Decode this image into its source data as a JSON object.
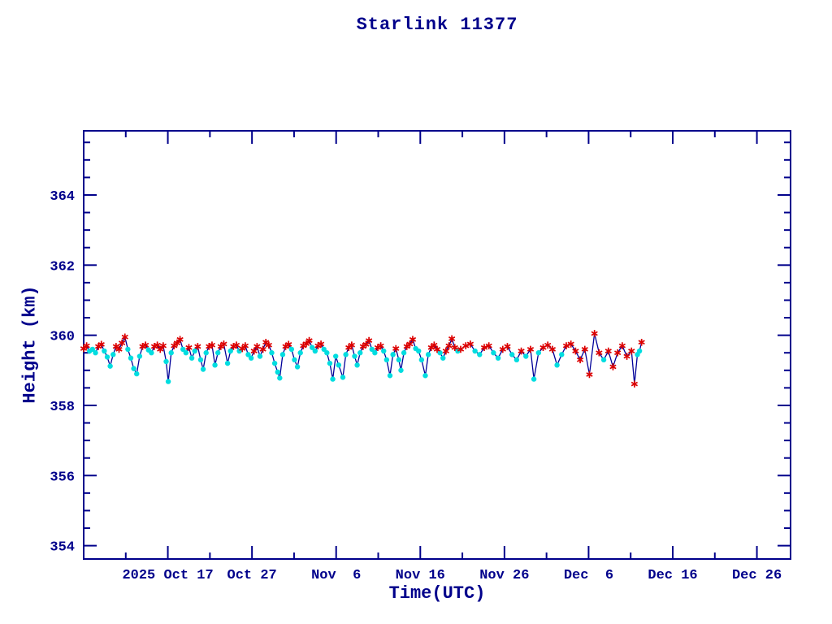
{
  "window": {
    "title": "Starlink 11377"
  },
  "colors": {
    "axis": "#00008B",
    "text": "#00008B",
    "line": "#000099",
    "red_marker": "#DC0000",
    "cyan_marker": "#00DDE0",
    "background": "#FFFFFF"
  },
  "chart_data": {
    "type": "line",
    "title": "Starlink 11377",
    "xlabel": "Time(UTC)",
    "ylabel": "Height (km)",
    "legend": "none",
    "grid": false,
    "x_axis": {
      "unit": "days since 2025 Oct 7 (UTC)",
      "range_days": [
        0,
        84
      ],
      "major_ticks": [
        {
          "day": 10,
          "label": "2025 Oct 17"
        },
        {
          "day": 20,
          "label": "Oct 27"
        },
        {
          "day": 30,
          "label": "Nov  6"
        },
        {
          "day": 40,
          "label": "Nov 16"
        },
        {
          "day": 50,
          "label": "Nov 26"
        },
        {
          "day": 60,
          "label": "Dec  6"
        },
        {
          "day": 70,
          "label": "Dec 16"
        },
        {
          "day": 80,
          "label": "Dec 26"
        }
      ],
      "minor_tick_days": [
        5,
        15,
        25,
        35,
        45,
        55,
        65,
        75
      ]
    },
    "y_axis": {
      "unit": "km",
      "range": [
        353.62,
        365.83
      ],
      "major_ticks": [
        354,
        356,
        358,
        360,
        362,
        364
      ],
      "minor_step": 0.5
    },
    "markers": {
      "r": {
        "shape": "asterisk",
        "meaning": "red asterisk point"
      },
      "c": {
        "shape": "filled-circle",
        "meaning": "cyan dot point"
      }
    },
    "series": [
      {
        "name": "height",
        "points": [
          [
            0,
            359.62,
            "r"
          ],
          [
            0.35,
            359.7,
            "r"
          ],
          [
            0.7,
            359.55,
            "c"
          ],
          [
            1.05,
            359.6,
            "c"
          ],
          [
            1.4,
            359.5,
            "c"
          ],
          [
            1.75,
            359.68,
            "r"
          ],
          [
            2.1,
            359.74,
            "r"
          ],
          [
            2.45,
            359.55,
            "c"
          ],
          [
            2.8,
            359.38,
            "c"
          ],
          [
            3.15,
            359.12,
            "c"
          ],
          [
            3.5,
            359.45,
            "c"
          ],
          [
            3.85,
            359.68,
            "r"
          ],
          [
            4.2,
            359.6,
            "r"
          ],
          [
            4.55,
            359.78,
            "r"
          ],
          [
            4.9,
            359.95,
            "r"
          ],
          [
            5.25,
            359.6,
            "c"
          ],
          [
            5.6,
            359.35,
            "c"
          ],
          [
            5.95,
            359.05,
            "c"
          ],
          [
            6.3,
            358.9,
            "c"
          ],
          [
            6.65,
            359.4,
            "c"
          ],
          [
            7,
            359.68,
            "r"
          ],
          [
            7.35,
            359.72,
            "r"
          ],
          [
            7.7,
            359.58,
            "c"
          ],
          [
            8.05,
            359.5,
            "c"
          ],
          [
            8.4,
            359.68,
            "r"
          ],
          [
            8.75,
            359.72,
            "r"
          ],
          [
            9.1,
            359.6,
            "r"
          ],
          [
            9.45,
            359.7,
            "r"
          ],
          [
            9.8,
            359.25,
            "c"
          ],
          [
            10.05,
            358.68,
            "c"
          ],
          [
            10.4,
            359.5,
            "c"
          ],
          [
            10.75,
            359.7,
            "r"
          ],
          [
            11.1,
            359.78,
            "r"
          ],
          [
            11.45,
            359.88,
            "r"
          ],
          [
            11.8,
            359.6,
            "c"
          ],
          [
            12.15,
            359.5,
            "c"
          ],
          [
            12.5,
            359.65,
            "r"
          ],
          [
            12.85,
            359.35,
            "c"
          ],
          [
            13.2,
            359.55,
            "c"
          ],
          [
            13.55,
            359.68,
            "r"
          ],
          [
            13.9,
            359.3,
            "c"
          ],
          [
            14.2,
            359.03,
            "c"
          ],
          [
            14.55,
            359.5,
            "c"
          ],
          [
            14.9,
            359.68,
            "r"
          ],
          [
            15.25,
            359.72,
            "r"
          ],
          [
            15.6,
            359.15,
            "c"
          ],
          [
            15.95,
            359.5,
            "c"
          ],
          [
            16.3,
            359.68,
            "r"
          ],
          [
            16.65,
            359.75,
            "r"
          ],
          [
            17.1,
            359.2,
            "c"
          ],
          [
            17.45,
            359.55,
            "c"
          ],
          [
            17.8,
            359.68,
            "r"
          ],
          [
            18.15,
            359.72,
            "r"
          ],
          [
            18.5,
            359.55,
            "c"
          ],
          [
            18.85,
            359.62,
            "r"
          ],
          [
            19.2,
            359.7,
            "r"
          ],
          [
            19.55,
            359.45,
            "c"
          ],
          [
            19.9,
            359.35,
            "c"
          ],
          [
            20.25,
            359.55,
            "r"
          ],
          [
            20.6,
            359.68,
            "r"
          ],
          [
            20.95,
            359.4,
            "c"
          ],
          [
            21.3,
            359.6,
            "r"
          ],
          [
            21.65,
            359.8,
            "r"
          ],
          [
            22,
            359.72,
            "r"
          ],
          [
            22.35,
            359.5,
            "c"
          ],
          [
            22.7,
            359.2,
            "c"
          ],
          [
            23.05,
            358.95,
            "c"
          ],
          [
            23.3,
            358.78,
            "c"
          ],
          [
            23.65,
            359.45,
            "c"
          ],
          [
            24,
            359.68,
            "r"
          ],
          [
            24.35,
            359.74,
            "r"
          ],
          [
            24.7,
            359.6,
            "c"
          ],
          [
            25.05,
            359.3,
            "c"
          ],
          [
            25.4,
            359.1,
            "c"
          ],
          [
            25.75,
            359.5,
            "c"
          ],
          [
            26.1,
            359.7,
            "r"
          ],
          [
            26.45,
            359.76,
            "r"
          ],
          [
            26.8,
            359.85,
            "r"
          ],
          [
            27.15,
            359.65,
            "c"
          ],
          [
            27.5,
            359.55,
            "c"
          ],
          [
            27.85,
            359.7,
            "r"
          ],
          [
            28.2,
            359.75,
            "r"
          ],
          [
            28.55,
            359.6,
            "c"
          ],
          [
            28.9,
            359.5,
            "c"
          ],
          [
            29.25,
            359.2,
            "c"
          ],
          [
            29.6,
            358.75,
            "c"
          ],
          [
            29.95,
            359.4,
            "c"
          ],
          [
            30.3,
            359.15,
            "c"
          ],
          [
            30.8,
            358.8,
            "c"
          ],
          [
            31.15,
            359.45,
            "c"
          ],
          [
            31.5,
            359.65,
            "r"
          ],
          [
            31.85,
            359.72,
            "r"
          ],
          [
            32.2,
            359.4,
            "c"
          ],
          [
            32.5,
            359.15,
            "c"
          ],
          [
            32.85,
            359.5,
            "c"
          ],
          [
            33.2,
            359.68,
            "r"
          ],
          [
            33.55,
            359.74,
            "r"
          ],
          [
            33.9,
            359.85,
            "r"
          ],
          [
            34.25,
            359.6,
            "c"
          ],
          [
            34.6,
            359.5,
            "c"
          ],
          [
            34.95,
            359.65,
            "r"
          ],
          [
            35.3,
            359.7,
            "r"
          ],
          [
            35.65,
            359.55,
            "c"
          ],
          [
            36,
            359.3,
            "c"
          ],
          [
            36.4,
            358.85,
            "c"
          ],
          [
            36.75,
            359.45,
            "c"
          ],
          [
            37.1,
            359.62,
            "r"
          ],
          [
            37.45,
            359.3,
            "c"
          ],
          [
            37.7,
            359.0,
            "c"
          ],
          [
            38.05,
            359.5,
            "c"
          ],
          [
            38.4,
            359.68,
            "r"
          ],
          [
            38.75,
            359.75,
            "r"
          ],
          [
            39.1,
            359.88,
            "r"
          ],
          [
            39.45,
            359.62,
            "c"
          ],
          [
            39.8,
            359.55,
            "c"
          ],
          [
            40.15,
            359.3,
            "c"
          ],
          [
            40.6,
            358.85,
            "c"
          ],
          [
            40.95,
            359.45,
            "c"
          ],
          [
            41.3,
            359.65,
            "r"
          ],
          [
            41.65,
            359.72,
            "r"
          ],
          [
            42,
            359.6,
            "r"
          ],
          [
            42.35,
            359.5,
            "c"
          ],
          [
            42.7,
            359.35,
            "c"
          ],
          [
            43.05,
            359.55,
            "r"
          ],
          [
            43.4,
            359.7,
            "r"
          ],
          [
            43.75,
            359.9,
            "r"
          ],
          [
            44.1,
            359.65,
            "r"
          ],
          [
            44.45,
            359.55,
            "c"
          ],
          [
            44.8,
            359.6,
            "r"
          ],
          [
            45.4,
            359.7,
            "r"
          ],
          [
            45.95,
            359.75,
            "r"
          ],
          [
            46.5,
            359.55,
            "c"
          ],
          [
            47.05,
            359.45,
            "c"
          ],
          [
            47.6,
            359.65,
            "r"
          ],
          [
            48.15,
            359.7,
            "r"
          ],
          [
            48.7,
            359.5,
            "c"
          ],
          [
            49.25,
            359.35,
            "c"
          ],
          [
            49.8,
            359.6,
            "r"
          ],
          [
            50.35,
            359.68,
            "r"
          ],
          [
            50.9,
            359.45,
            "c"
          ],
          [
            51.45,
            359.3,
            "c"
          ],
          [
            52,
            359.55,
            "r"
          ],
          [
            52.55,
            359.4,
            "c"
          ],
          [
            53.1,
            359.6,
            "r"
          ],
          [
            53.5,
            358.75,
            "c"
          ],
          [
            54.05,
            359.5,
            "c"
          ],
          [
            54.6,
            359.65,
            "r"
          ],
          [
            55.15,
            359.72,
            "r"
          ],
          [
            55.7,
            359.6,
            "r"
          ],
          [
            56.25,
            359.15,
            "c"
          ],
          [
            56.8,
            359.45,
            "c"
          ],
          [
            57.35,
            359.7,
            "r"
          ],
          [
            57.9,
            359.75,
            "r"
          ],
          [
            58.45,
            359.55,
            "r"
          ],
          [
            59,
            359.3,
            "r"
          ],
          [
            59.55,
            359.6,
            "r"
          ],
          [
            60.1,
            358.88,
            "r"
          ],
          [
            60.7,
            360.05,
            "r"
          ],
          [
            61.25,
            359.5,
            "r"
          ],
          [
            61.8,
            359.3,
            "c"
          ],
          [
            62.35,
            359.55,
            "r"
          ],
          [
            62.9,
            359.1,
            "r"
          ],
          [
            63.45,
            359.5,
            "r"
          ],
          [
            64,
            359.7,
            "r"
          ],
          [
            64.55,
            359.4,
            "r"
          ],
          [
            65.1,
            359.55,
            "r"
          ],
          [
            65.45,
            358.61,
            "r"
          ],
          [
            65.8,
            359.45,
            "c"
          ],
          [
            66.05,
            359.55,
            "c"
          ],
          [
            66.3,
            359.8,
            "r"
          ]
        ]
      }
    ]
  }
}
